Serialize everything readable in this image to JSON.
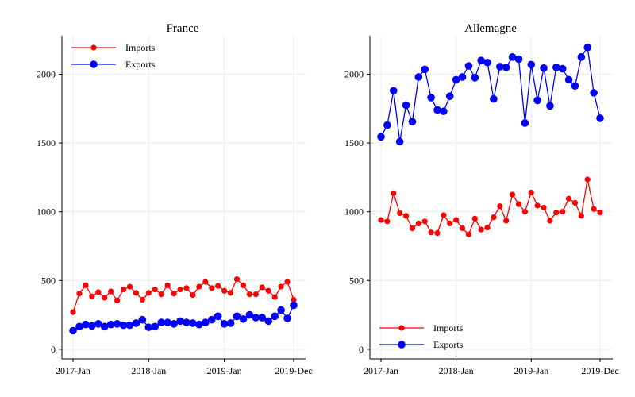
{
  "chart_data": [
    {
      "type": "line",
      "title": "France",
      "xlabel": "",
      "ylabel": "",
      "x": [
        "2017-Jan",
        "2017-Feb",
        "2017-Mar",
        "2017-Apr",
        "2017-May",
        "2017-Jun",
        "2017-Jul",
        "2017-Aug",
        "2017-Sep",
        "2017-Oct",
        "2017-Nov",
        "2017-Dec",
        "2018-Jan",
        "2018-Feb",
        "2018-Mar",
        "2018-Apr",
        "2018-May",
        "2018-Jun",
        "2018-Jul",
        "2018-Aug",
        "2018-Sep",
        "2018-Oct",
        "2018-Nov",
        "2018-Dec",
        "2019-Jan",
        "2019-Feb",
        "2019-Mar",
        "2019-Apr",
        "2019-May",
        "2019-Jun",
        "2019-Jul",
        "2019-Aug",
        "2019-Sep",
        "2019-Oct",
        "2019-Nov",
        "2019-Dec"
      ],
      "xticks": [
        "2017-Jan",
        "2018-Jan",
        "2019-Jan",
        "2019-Dec"
      ],
      "ylim": [
        -70,
        2280
      ],
      "yticks": [
        0,
        500,
        1000,
        1500,
        2000
      ],
      "grid": true,
      "legend_position": "top-left",
      "series": [
        {
          "name": "Imports",
          "color": "#ff0000",
          "marker": "small",
          "values": [
            270,
            405,
            465,
            385,
            415,
            375,
            420,
            355,
            435,
            455,
            410,
            360,
            410,
            435,
            400,
            465,
            405,
            435,
            445,
            395,
            455,
            490,
            445,
            460,
            425,
            410,
            510,
            465,
            400,
            400,
            450,
            425,
            380,
            455,
            490,
            360
          ]
        },
        {
          "name": "Exports",
          "color": "#0000ff",
          "marker": "large",
          "values": [
            135,
            165,
            180,
            170,
            185,
            165,
            180,
            185,
            175,
            175,
            190,
            215,
            160,
            165,
            195,
            195,
            185,
            205,
            195,
            190,
            180,
            195,
            215,
            240,
            185,
            190,
            240,
            220,
            250,
            230,
            230,
            205,
            240,
            285,
            225,
            320
          ]
        }
      ]
    },
    {
      "type": "line",
      "title": "Allemagne",
      "xlabel": "",
      "ylabel": "",
      "x": [
        "2017-Jan",
        "2017-Feb",
        "2017-Mar",
        "2017-Apr",
        "2017-May",
        "2017-Jun",
        "2017-Jul",
        "2017-Aug",
        "2017-Sep",
        "2017-Oct",
        "2017-Nov",
        "2017-Dec",
        "2018-Jan",
        "2018-Feb",
        "2018-Mar",
        "2018-Apr",
        "2018-May",
        "2018-Jun",
        "2018-Jul",
        "2018-Aug",
        "2018-Sep",
        "2018-Oct",
        "2018-Nov",
        "2018-Dec",
        "2019-Jan",
        "2019-Feb",
        "2019-Mar",
        "2019-Apr",
        "2019-May",
        "2019-Jun",
        "2019-Jul",
        "2019-Aug",
        "2019-Sep",
        "2019-Oct",
        "2019-Nov",
        "2019-Dec"
      ],
      "xticks": [
        "2017-Jan",
        "2018-Jan",
        "2019-Jan",
        "2019-Dec"
      ],
      "ylim": [
        -70,
        2280
      ],
      "yticks": [
        0,
        500,
        1000,
        1500,
        2000
      ],
      "grid": true,
      "legend_position": "bottom-left",
      "series": [
        {
          "name": "Imports",
          "color": "#ff0000",
          "marker": "small",
          "values": [
            940,
            930,
            1135,
            990,
            970,
            880,
            915,
            930,
            850,
            845,
            975,
            915,
            940,
            880,
            835,
            950,
            870,
            885,
            960,
            1040,
            935,
            1125,
            1055,
            1000,
            1140,
            1045,
            1030,
            935,
            995,
            1000,
            1095,
            1065,
            970,
            1235,
            1020,
            995
          ]
        },
        {
          "name": "Exports",
          "color": "#0000ff",
          "marker": "large",
          "values": [
            1545,
            1630,
            1880,
            1510,
            1775,
            1655,
            1980,
            2035,
            1830,
            1740,
            1730,
            1840,
            1960,
            1980,
            2060,
            1975,
            2100,
            2085,
            1820,
            2055,
            2050,
            2125,
            2110,
            1645,
            2070,
            1810,
            2045,
            1770,
            2050,
            2040,
            1960,
            1915,
            2125,
            2195,
            1865,
            1680
          ]
        }
      ]
    }
  ]
}
